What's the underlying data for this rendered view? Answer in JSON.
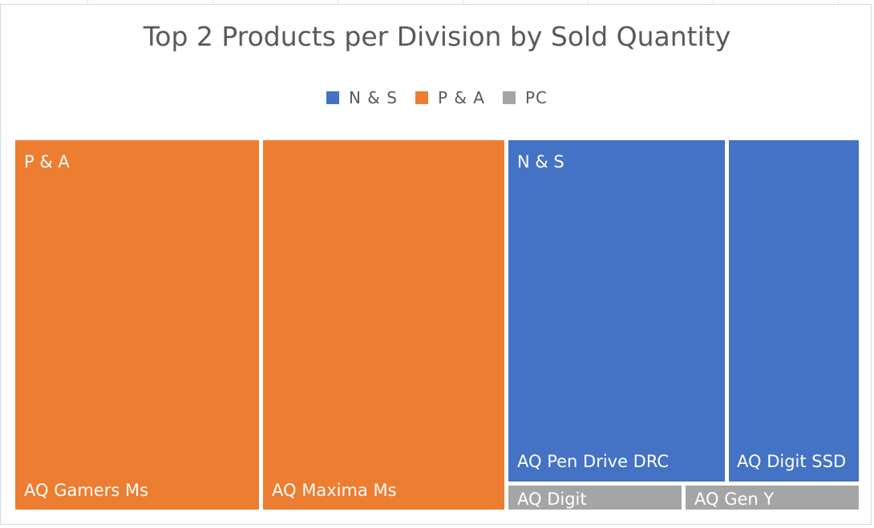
{
  "chart_data": {
    "type": "treemap",
    "title": "Top 2 Products per Division by Sold Quantity",
    "legend": [
      {
        "name": "N & S",
        "color": "#4472C4"
      },
      {
        "name": "P & A",
        "color": "#ED7D31"
      },
      {
        "name": "PC",
        "color": "#A5A5A5"
      }
    ],
    "groups": [
      {
        "name": "P & A",
        "color": "#ED7D31",
        "products": [
          {
            "name": "AQ Gamers Ms"
          },
          {
            "name": "AQ Maxima Ms"
          }
        ]
      },
      {
        "name": "N & S",
        "color": "#4472C4",
        "products": [
          {
            "name": "AQ Pen Drive DRC"
          },
          {
            "name": "AQ Digit SSD"
          }
        ]
      },
      {
        "name": "PC",
        "color": "#A5A5A5",
        "products": [
          {
            "name": "AQ Digit"
          },
          {
            "name": "AQ Gen Y"
          }
        ]
      }
    ]
  }
}
